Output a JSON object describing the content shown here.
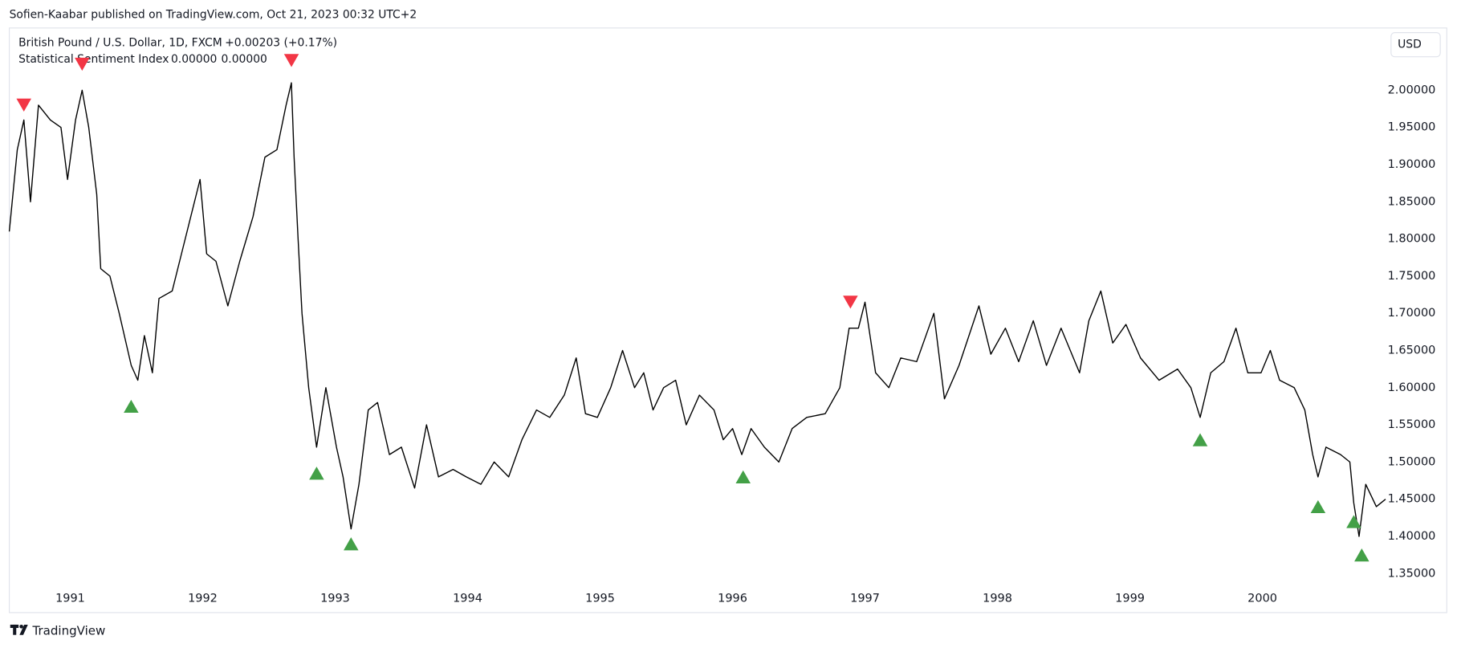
{
  "chart_data": {
    "type": "line",
    "published": "Sofien-Kaabar published on TradingView.com, Oct 21, 2023 00:32 UTC+2",
    "title": "British Pound / U.S. Dollar, 1D, FXCM",
    "change": "+0.00203 (+0.17%)",
    "indicator": {
      "name": "Statistical Sentiment Index",
      "readings": [
        {
          "text": "0.00000",
          "color": "#43a047"
        },
        {
          "text": "0.00000",
          "color": "#f23645"
        }
      ]
    },
    "currency": "USD",
    "brand": "TradingView",
    "xlim": [
      1990.54,
      2000.95
    ],
    "xticks": [
      1991,
      1992,
      1993,
      1994,
      1995,
      1996,
      1997,
      1998,
      1999,
      2000
    ],
    "ylim": [
      1.33,
      2.08
    ],
    "yticks": [
      {
        "value": 1.35,
        "label": "1.35000"
      },
      {
        "value": 1.4,
        "label": "1.40000"
      },
      {
        "value": 1.45,
        "label": "1.45000"
      },
      {
        "value": 1.5,
        "label": "1.50000"
      },
      {
        "value": 1.55,
        "label": "1.55000"
      },
      {
        "value": 1.6,
        "label": "1.60000"
      },
      {
        "value": 1.65,
        "label": "1.65000"
      },
      {
        "value": 1.7,
        "label": "1.70000"
      },
      {
        "value": 1.75,
        "label": "1.75000"
      },
      {
        "value": 1.8,
        "label": "1.80000"
      },
      {
        "value": 1.85,
        "label": "1.85000"
      },
      {
        "value": 1.9,
        "label": "1.90000"
      },
      {
        "value": 1.95,
        "label": "1.95000"
      },
      {
        "value": 2.0,
        "label": "2.00000"
      }
    ],
    "series": [
      {
        "color": "#000000",
        "x": [
          1990.54,
          1990.6,
          1990.65,
          1990.7,
          1990.76,
          1990.85,
          1990.93,
          1990.98,
          1991.04,
          1991.09,
          1991.14,
          1991.2,
          1991.23,
          1991.3,
          1991.37,
          1991.46,
          1991.51,
          1991.56,
          1991.62,
          1991.67,
          1991.77,
          1991.84,
          1991.91,
          1991.98,
          1992.03,
          1992.1,
          1992.19,
          1992.28,
          1992.38,
          1992.47,
          1992.56,
          1992.63,
          1992.67,
          1992.69,
          1992.72,
          1992.75,
          1992.8,
          1992.86,
          1992.93,
          1993.01,
          1993.06,
          1993.12,
          1993.18,
          1993.25,
          1993.32,
          1993.41,
          1993.5,
          1993.6,
          1993.69,
          1993.78,
          1993.89,
          1993.99,
          1994.1,
          1994.2,
          1994.31,
          1994.41,
          1994.52,
          1994.62,
          1994.73,
          1994.82,
          1994.89,
          1994.98,
          1995.08,
          1995.17,
          1995.26,
          1995.33,
          1995.4,
          1995.48,
          1995.57,
          1995.65,
          1995.75,
          1995.86,
          1995.93,
          1996.0,
          1996.07,
          1996.14,
          1996.24,
          1996.35,
          1996.45,
          1996.56,
          1996.7,
          1996.81,
          1996.88,
          1996.95,
          1997.0,
          1997.08,
          1997.18,
          1997.27,
          1997.39,
          1997.52,
          1997.6,
          1997.71,
          1997.86,
          1997.95,
          1998.06,
          1998.16,
          1998.27,
          1998.37,
          1998.48,
          1998.62,
          1998.69,
          1998.78,
          1998.87,
          1998.97,
          1999.08,
          1999.22,
          1999.36,
          1999.46,
          1999.53,
          1999.61,
          1999.71,
          1999.8,
          1999.89,
          1999.99,
          2000.06,
          2000.13,
          2000.24,
          2000.32,
          2000.38,
          2000.42,
          2000.48,
          2000.59,
          2000.66,
          2000.69,
          2000.73,
          2000.78,
          2000.86,
          2000.93
        ],
        "values": [
          1.81,
          1.92,
          1.96,
          1.85,
          1.98,
          1.96,
          1.95,
          1.88,
          1.96,
          2.0,
          1.95,
          1.86,
          1.76,
          1.75,
          1.7,
          1.63,
          1.61,
          1.67,
          1.62,
          1.72,
          1.73,
          1.78,
          1.83,
          1.88,
          1.78,
          1.77,
          1.71,
          1.77,
          1.83,
          1.91,
          1.92,
          1.98,
          2.01,
          1.91,
          1.8,
          1.7,
          1.6,
          1.52,
          1.6,
          1.52,
          1.48,
          1.41,
          1.47,
          1.57,
          1.58,
          1.51,
          1.52,
          1.465,
          1.55,
          1.48,
          1.49,
          1.48,
          1.47,
          1.5,
          1.48,
          1.53,
          1.57,
          1.56,
          1.59,
          1.64,
          1.565,
          1.56,
          1.6,
          1.65,
          1.6,
          1.62,
          1.57,
          1.6,
          1.61,
          1.55,
          1.59,
          1.57,
          1.53,
          1.545,
          1.51,
          1.545,
          1.52,
          1.5,
          1.545,
          1.56,
          1.565,
          1.6,
          1.68,
          1.68,
          1.715,
          1.62,
          1.6,
          1.64,
          1.635,
          1.7,
          1.585,
          1.63,
          1.71,
          1.645,
          1.68,
          1.635,
          1.69,
          1.63,
          1.68,
          1.62,
          1.69,
          1.73,
          1.66,
          1.685,
          1.64,
          1.61,
          1.625,
          1.6,
          1.56,
          1.62,
          1.635,
          1.68,
          1.62,
          1.62,
          1.65,
          1.61,
          1.6,
          1.57,
          1.51,
          1.48,
          1.52,
          1.51,
          1.5,
          1.445,
          1.4,
          1.47,
          1.44,
          1.45
        ]
      },
      {
        "color": "#f23645",
        "marker": "triangle-down",
        "x": [
          1990.65,
          1991.09,
          1992.67,
          1996.89
        ],
        "values": [
          1.98,
          2.035,
          2.04,
          1.715
        ]
      },
      {
        "color": "#43a047",
        "marker": "triangle-up",
        "x": [
          1991.46,
          1992.86,
          1993.12,
          1996.08,
          1999.53,
          2000.42,
          2000.69,
          2000.75
        ],
        "values": [
          1.575,
          1.485,
          1.39,
          1.48,
          1.53,
          1.44,
          1.42,
          1.375
        ]
      }
    ]
  }
}
